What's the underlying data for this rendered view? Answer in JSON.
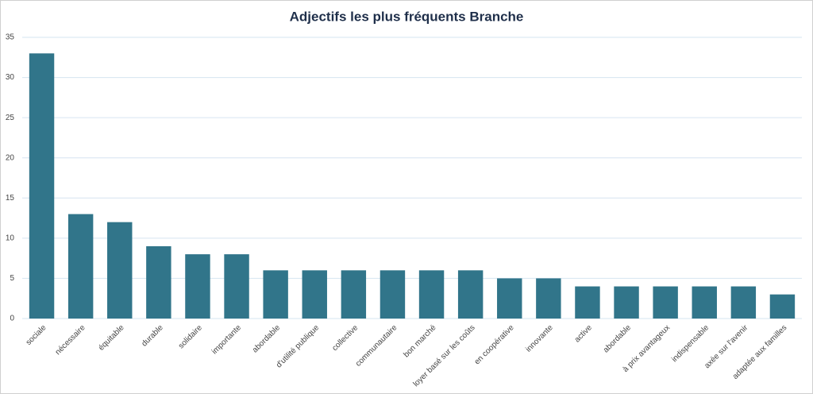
{
  "chart_data": {
    "type": "bar",
    "title": "Adjectifs les plus fréquents Branche",
    "categories": [
      "sociale",
      "nécessaire",
      "équitable",
      "durable",
      "solidaire",
      "importante",
      "abordable",
      "d'utilité publique",
      "collective",
      "communautaire",
      "bon marché",
      "loyer basé sur les coûts",
      "en coopérative",
      "innovante",
      "active",
      "abordable",
      "à prix avantageux",
      "indispensable",
      "axée sur l'avenir",
      "adaptée aux familles"
    ],
    "values": [
      33,
      13,
      12,
      9,
      8,
      8,
      6,
      6,
      6,
      6,
      6,
      6,
      5,
      5,
      4,
      4,
      4,
      4,
      4,
      3
    ],
    "color": "#31758a",
    "ylim": [
      0,
      35
    ],
    "yticks": [
      0,
      5,
      10,
      15,
      20,
      25,
      30,
      35
    ],
    "grid": true
  }
}
